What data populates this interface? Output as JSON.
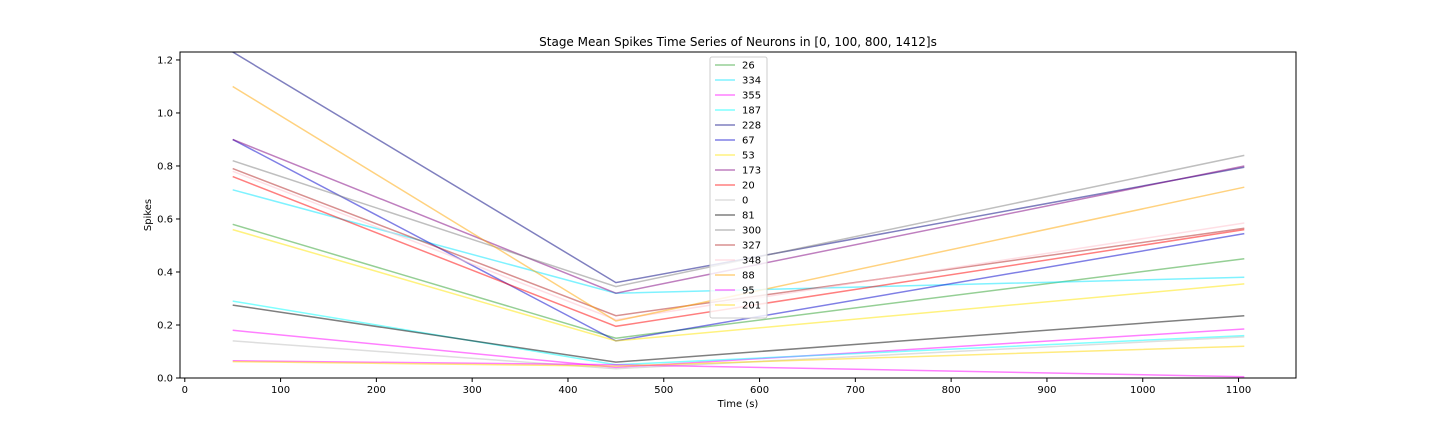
{
  "chart_data": {
    "type": "line",
    "title": "Stage Mean Spikes Time Series of Neurons in [0, 100, 800, 1412]s",
    "xlabel": "Time (s)",
    "ylabel": "Spikes",
    "x": [
      50,
      450,
      1106
    ],
    "xlim": [
      -5,
      1160
    ],
    "ylim": [
      0,
      1.23
    ],
    "xticks": [
      0,
      100,
      200,
      300,
      400,
      500,
      600,
      700,
      800,
      900,
      1000,
      1100
    ],
    "yticks": [
      0.0,
      0.2,
      0.4,
      0.6,
      0.8,
      1.0,
      1.2
    ],
    "ytick_labels": [
      "0.0",
      "0.2",
      "0.4",
      "0.6",
      "0.8",
      "1.0",
      "1.2"
    ],
    "grid": false,
    "legend_position": "top-center",
    "series": [
      {
        "name": "26",
        "color": "#2ca02c",
        "values": [
          0.58,
          0.15,
          0.45
        ]
      },
      {
        "name": "334",
        "color": "#00e5ff",
        "values": [
          0.71,
          0.32,
          0.38
        ]
      },
      {
        "name": "355",
        "color": "#ff00ff",
        "values": [
          0.18,
          0.04,
          0.185
        ]
      },
      {
        "name": "187",
        "color": "#00ffff",
        "values": [
          0.29,
          0.05,
          0.16
        ]
      },
      {
        "name": "228",
        "color": "#000080",
        "values": [
          1.23,
          0.36,
          0.795
        ]
      },
      {
        "name": "67",
        "color": "#0000cc",
        "values": [
          0.9,
          0.14,
          0.545
        ]
      },
      {
        "name": "53",
        "color": "#ffe600",
        "values": [
          0.56,
          0.14,
          0.355
        ]
      },
      {
        "name": "173",
        "color": "#800080",
        "values": [
          0.9,
          0.32,
          0.8
        ]
      },
      {
        "name": "20",
        "color": "#ff0000",
        "values": [
          0.76,
          0.195,
          0.56
        ]
      },
      {
        "name": "0",
        "color": "#bdbdbd",
        "values": [
          0.14,
          0.035,
          0.155
        ]
      },
      {
        "name": "81",
        "color": "#000000",
        "values": [
          0.275,
          0.06,
          0.235
        ]
      },
      {
        "name": "300",
        "color": "#808080",
        "values": [
          0.82,
          0.345,
          0.84
        ]
      },
      {
        "name": "327",
        "color": "#b22222",
        "values": [
          0.79,
          0.235,
          0.565
        ]
      },
      {
        "name": "348",
        "color": "#ffc0cb",
        "values": [
          0.78,
          0.22,
          0.585
        ]
      },
      {
        "name": "88",
        "color": "#ffa500",
        "values": [
          1.1,
          0.215,
          0.72
        ]
      },
      {
        "name": "95",
        "color": "#ff00ff",
        "values": [
          0.065,
          0.05,
          0.005
        ]
      },
      {
        "name": "201",
        "color": "#ffd700",
        "values": [
          0.062,
          0.045,
          0.12
        ]
      }
    ]
  }
}
